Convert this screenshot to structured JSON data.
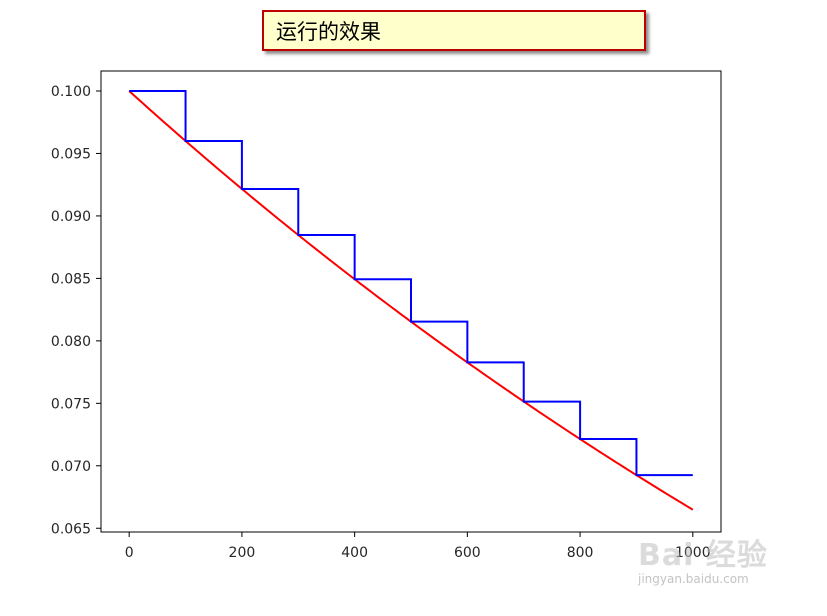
{
  "caption": "运行的效果",
  "watermark": {
    "line1": "Bai 经验",
    "line2": "jingyan.baidu.com"
  },
  "chart_data": {
    "type": "line",
    "title": "",
    "xlabel": "",
    "ylabel": "",
    "xlim": [
      -50,
      1050
    ],
    "ylim": [
      0.0647,
      0.1016
    ],
    "xticks": [
      0,
      200,
      400,
      600,
      800,
      1000
    ],
    "xtick_labels": [
      "0",
      "200",
      "400",
      "600",
      "800",
      "1000"
    ],
    "yticks": [
      0.065,
      0.07,
      0.075,
      0.08,
      0.085,
      0.09,
      0.095,
      0.1
    ],
    "ytick_labels": [
      "0.065",
      "0.070",
      "0.075",
      "0.080",
      "0.085",
      "0.090",
      "0.095",
      "0.100"
    ],
    "grid": false,
    "legend": "none",
    "series": [
      {
        "color": "#0000ff",
        "style": "step",
        "x": [
          0,
          100,
          100,
          200,
          200,
          300,
          300,
          400,
          400,
          500,
          500,
          600,
          600,
          700,
          700,
          800,
          800,
          900,
          900,
          1000
        ],
        "y": [
          0.1,
          0.1,
          0.096,
          0.096,
          0.09216,
          0.09216,
          0.08847,
          0.08847,
          0.08493,
          0.08493,
          0.08154,
          0.08154,
          0.07828,
          0.07828,
          0.07514,
          0.07514,
          0.07214,
          0.07214,
          0.06925,
          0.06925
        ]
      },
      {
        "color": "#ff0000",
        "style": "smooth",
        "decay_rate": 0.96,
        "decay_steps": 100,
        "initial": 0.1,
        "x_start": 0,
        "x_end": 1000
      }
    ]
  }
}
